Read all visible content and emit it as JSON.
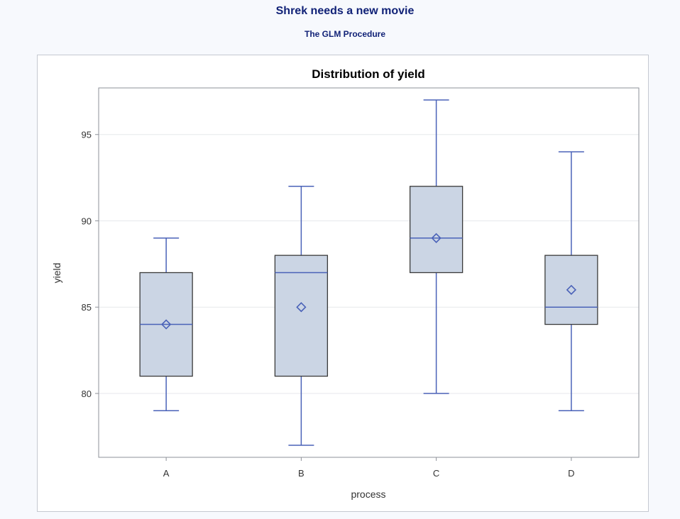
{
  "report": {
    "title": "Shrek needs a new movie",
    "subtitle": "The GLM Procedure"
  },
  "chart_data": {
    "type": "box",
    "title": "Distribution of yield",
    "xlabel": "process",
    "ylabel": "yield",
    "categories": [
      "A",
      "B",
      "C",
      "D"
    ],
    "boxes": [
      {
        "category": "A",
        "min": 79,
        "q1": 81,
        "median": 84,
        "q3": 87,
        "max": 89,
        "mean": 84
      },
      {
        "category": "B",
        "min": 77,
        "q1": 81,
        "median": 87,
        "q3": 88,
        "max": 92,
        "mean": 85
      },
      {
        "category": "C",
        "min": 80,
        "q1": 87,
        "median": 89,
        "q3": 92,
        "max": 97,
        "mean": 89
      },
      {
        "category": "D",
        "min": 79,
        "q1": 84,
        "median": 85,
        "q3": 88,
        "max": 94,
        "mean": 86
      }
    ],
    "ylim": [
      76.3,
      97.7
    ],
    "yticks": [
      80,
      85,
      90,
      95
    ],
    "grid": true,
    "colors": {
      "box_fill": "#cbd5e4",
      "box_edge": "#3a3a3a",
      "whisker": "#4a62b8",
      "median": "#4a62b8",
      "mean_marker": "#4a62b8",
      "gridline": "#e6e8ec"
    }
  }
}
